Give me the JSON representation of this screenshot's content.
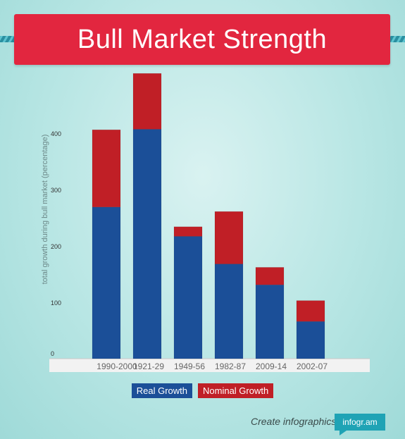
{
  "header": {
    "title": "Bull Market Strength"
  },
  "chart_data": {
    "type": "bar",
    "stacked": true,
    "categories": [
      "1990-2000",
      "1921-29",
      "1949-56",
      "1982-87",
      "2009-14",
      "2002-07"
    ],
    "series": [
      {
        "name": "Real Growth",
        "color": "#1b4f98",
        "values": [
          269,
          407,
          217,
          168,
          131,
          66
        ]
      },
      {
        "name": "Nominal Growth",
        "color": "#c01f26",
        "values": [
          137,
          99,
          17,
          93,
          31,
          37
        ]
      }
    ],
    "ylabel": "total growth during bull market (percentage)",
    "yticks": [
      0,
      100,
      200,
      300,
      400
    ],
    "ylim": [
      0,
      500
    ],
    "grid": false,
    "legend": "bottom-center"
  },
  "legend": {
    "real_label": "Real Growth",
    "nominal_label": "Nominal Growth"
  },
  "footer": {
    "text": "Create infographics",
    "brand": "infogr.am"
  }
}
